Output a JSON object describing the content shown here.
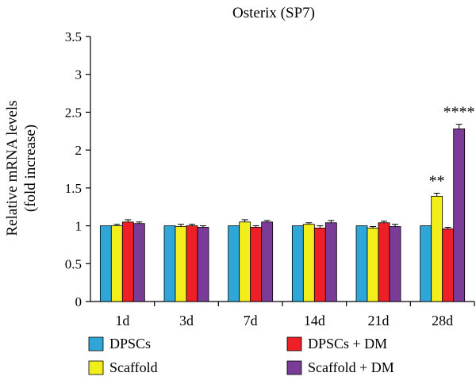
{
  "chart_data": {
    "type": "bar",
    "title": "Osterix (SP7)",
    "ylabel_line1": "Relative mRNA levels",
    "ylabel_line2": "(fold increase)",
    "xlabel": "",
    "ylim": [
      0,
      3.5
    ],
    "yticks": [
      "0",
      "0.5",
      "1",
      "1.5",
      "2",
      "2.5",
      "3",
      "3.5"
    ],
    "categories": [
      "1d",
      "3d",
      "7d",
      "14d",
      "21d",
      "28d"
    ],
    "grid": false,
    "legend_position": "bottom",
    "series": [
      {
        "name": "DPSCs",
        "color": "#2ea7d8",
        "values": [
          1.0,
          1.0,
          1.0,
          1.0,
          1.0,
          1.0
        ],
        "errors": [
          0.0,
          0.0,
          0.0,
          0.0,
          0.0,
          0.0
        ]
      },
      {
        "name": "Scaffold",
        "color": "#f2ee1b",
        "values": [
          1.0,
          0.99,
          1.05,
          1.02,
          0.97,
          1.39
        ],
        "errors": [
          0.02,
          0.03,
          0.03,
          0.02,
          0.02,
          0.04
        ]
      },
      {
        "name": "DPSCs + DM",
        "color": "#ee1f26",
        "values": [
          1.05,
          1.0,
          0.98,
          0.97,
          1.04,
          0.96
        ],
        "errors": [
          0.03,
          0.02,
          0.02,
          0.03,
          0.02,
          0.02
        ]
      },
      {
        "name": "Scaffold + DM",
        "color": "#7a3c97",
        "values": [
          1.03,
          0.98,
          1.05,
          1.04,
          0.99,
          2.28
        ],
        "errors": [
          0.02,
          0.02,
          0.02,
          0.03,
          0.03,
          0.06
        ]
      }
    ],
    "annotations": [
      {
        "text": "**",
        "category": "28d",
        "series": "Scaffold"
      },
      {
        "text": "****",
        "category": "28d",
        "series": "Scaffold + DM"
      }
    ]
  }
}
